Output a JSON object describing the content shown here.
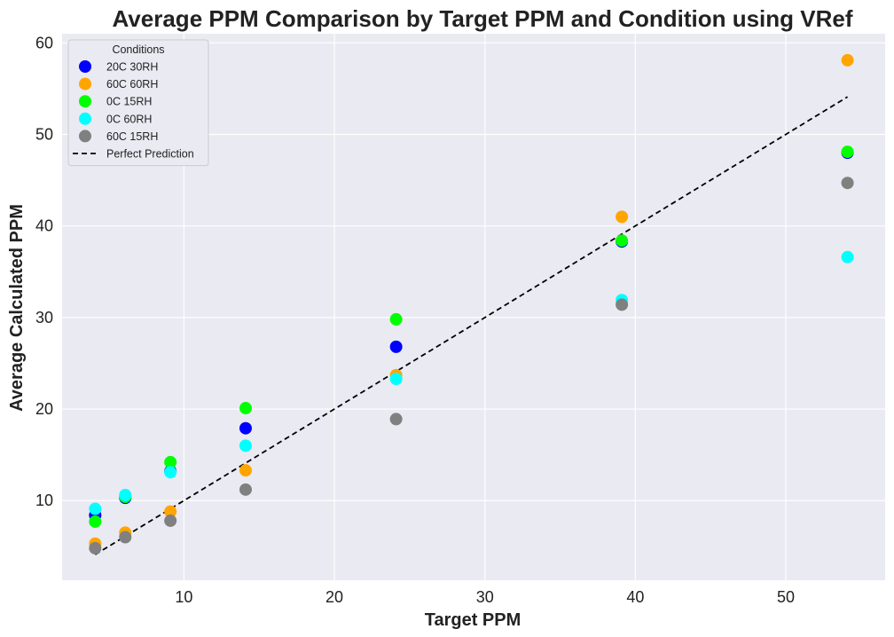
{
  "chart_data": {
    "type": "scatter",
    "title": "Average PPM Comparison by Target PPM and Condition using VRef",
    "xlabel": "Target PPM",
    "ylabel": "Average Calculated PPM",
    "xlim": [
      1.9,
      56.6
    ],
    "ylim": [
      1.3,
      61.0
    ],
    "x_ticks": [
      10,
      20,
      30,
      40,
      50
    ],
    "y_ticks": [
      10,
      20,
      30,
      40,
      50,
      60
    ],
    "grid": true,
    "background": "#eaeaf2",
    "legend": {
      "title": "Conditions",
      "placement": "top-left"
    },
    "series": [
      {
        "name": "20C 30RH",
        "color": "#0000ff",
        "points": [
          [
            4.1,
            8.4
          ],
          [
            6.1,
            10.3
          ],
          [
            9.1,
            13.2
          ],
          [
            14.1,
            17.9
          ],
          [
            24.1,
            26.8
          ],
          [
            39.1,
            38.3
          ],
          [
            54.1,
            48.0
          ]
        ]
      },
      {
        "name": "60C 60RH",
        "color": "#ffa500",
        "points": [
          [
            4.1,
            5.3
          ],
          [
            6.1,
            6.5
          ],
          [
            9.1,
            8.8
          ],
          [
            14.1,
            13.3
          ],
          [
            24.1,
            23.7
          ],
          [
            39.1,
            41.0
          ],
          [
            54.1,
            58.1
          ]
        ]
      },
      {
        "name": "0C 15RH",
        "color": "#00ff00",
        "points": [
          [
            4.1,
            7.7
          ],
          [
            6.1,
            10.4
          ],
          [
            9.1,
            14.2
          ],
          [
            14.1,
            20.1
          ],
          [
            24.1,
            29.8
          ],
          [
            39.1,
            38.4
          ],
          [
            54.1,
            48.1
          ]
        ]
      },
      {
        "name": "0C 60RH",
        "color": "#00ffff",
        "points": [
          [
            4.1,
            9.1
          ],
          [
            6.1,
            10.6
          ],
          [
            9.1,
            13.1
          ],
          [
            14.1,
            16.0
          ],
          [
            24.1,
            23.3
          ],
          [
            39.1,
            31.9
          ],
          [
            54.1,
            36.6
          ]
        ]
      },
      {
        "name": "60C 15RH",
        "color": "#808080",
        "points": [
          [
            4.1,
            4.8
          ],
          [
            6.1,
            6.0
          ],
          [
            9.1,
            7.8
          ],
          [
            14.1,
            11.2
          ],
          [
            24.1,
            18.9
          ],
          [
            39.1,
            31.4
          ],
          [
            54.1,
            44.7
          ]
        ]
      }
    ],
    "reference_line": {
      "name": "Perfect Prediction",
      "color": "#000000",
      "style": "dashed",
      "x": [
        4.1,
        54.1
      ],
      "y": [
        4.1,
        54.1
      ]
    }
  }
}
